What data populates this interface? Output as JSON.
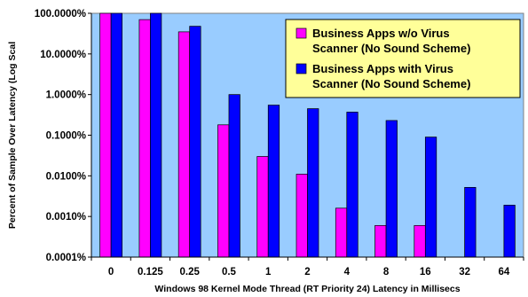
{
  "chart_data": {
    "type": "bar",
    "yscale": "log",
    "ylim": [
      0.0001,
      100
    ],
    "ytick_values": [
      100,
      10,
      1,
      0.1,
      0.01,
      0.001,
      0.0001
    ],
    "ytick_labels": [
      "100.0000%",
      "10.0000%",
      "1.0000%",
      "0.1000%",
      "0.0100%",
      "0.0010%",
      "0.0001%"
    ],
    "categories": [
      "0",
      "0.125",
      "0.25",
      "0.5",
      "1",
      "2",
      "4",
      "8",
      "16",
      "32",
      "64"
    ],
    "xlabel": "Windows 98 Kernel Mode Thread (RT Priority 24) Latency in Millisecs",
    "ylabel": "Percent of Sample Over Latency (Log Scal",
    "grid": false,
    "plot_background": "#99ccff",
    "legend_position": "top-right",
    "legend_background": "#ffff99",
    "series": [
      {
        "name": "Business Apps w/o Virus Scanner (No Sound Scheme)",
        "legend_lines": [
          "Business Apps w/o Virus",
          "Scanner (No Sound Scheme)"
        ],
        "color": "#ff00ff",
        "values": [
          100,
          70,
          35,
          0.18,
          0.03,
          0.011,
          0.0016,
          0.0006,
          0.0006,
          null,
          null
        ]
      },
      {
        "name": "Business Apps with Virus Scanner (No Sound Scheme)",
        "legend_lines": [
          "Business Apps with Virus",
          "Scanner (No Sound Scheme)"
        ],
        "color": "#0000ff",
        "values": [
          100,
          100,
          48,
          1.0,
          0.55,
          0.45,
          0.37,
          0.23,
          0.09,
          0.0052,
          0.0019
        ]
      }
    ]
  }
}
